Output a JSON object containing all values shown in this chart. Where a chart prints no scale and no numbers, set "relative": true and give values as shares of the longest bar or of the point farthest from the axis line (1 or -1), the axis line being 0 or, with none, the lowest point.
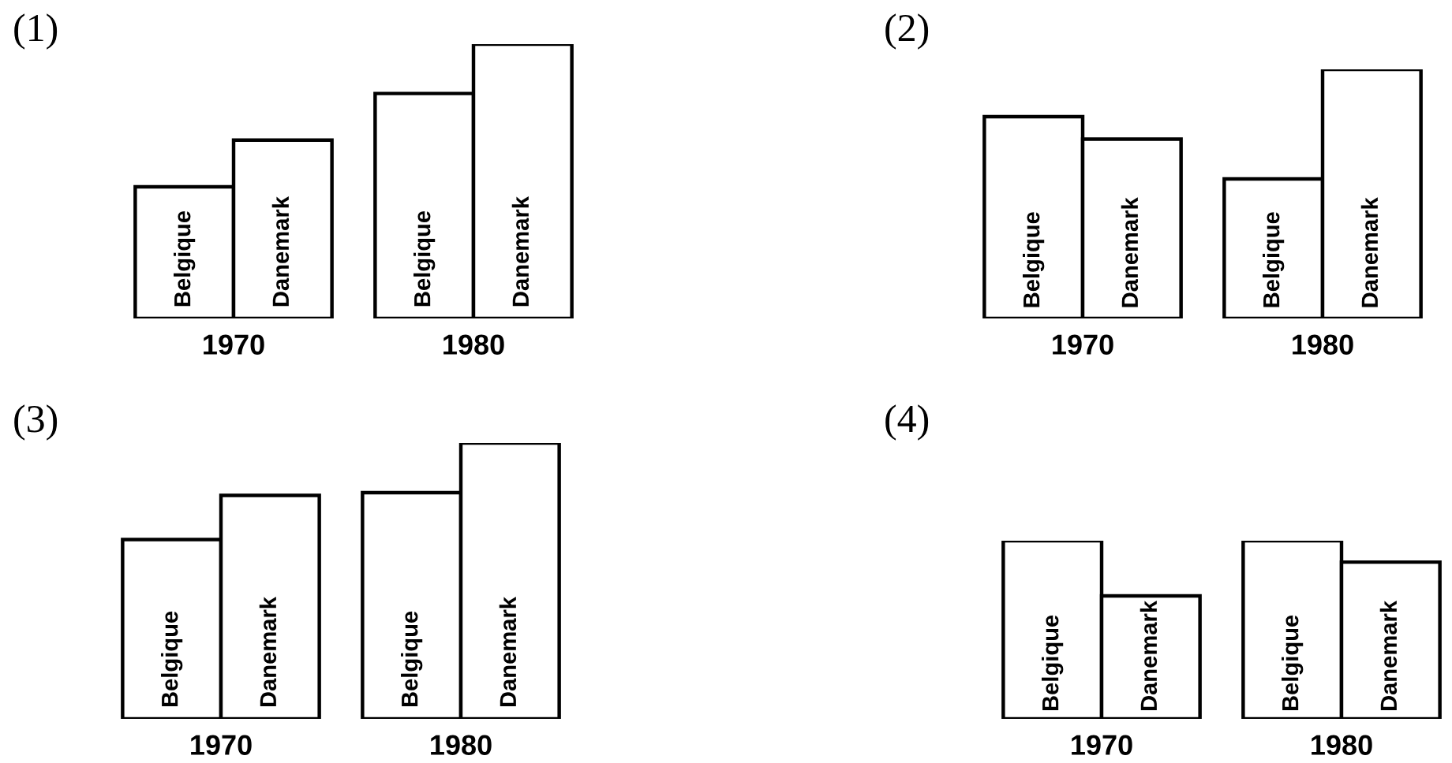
{
  "chart_data": [
    {
      "type": "bar",
      "title": "(1)",
      "relative": true,
      "categories": [
        "1970",
        "1980"
      ],
      "series": [
        {
          "name": "Belgique",
          "color": "#ffffff",
          "values": [
            0.48,
            0.82
          ]
        },
        {
          "name": "Danemark",
          "color": "#ffffff",
          "values": [
            0.65,
            1
          ]
        }
      ]
    },
    {
      "type": "bar",
      "title": "(2)",
      "relative": true,
      "categories": [
        "1970",
        "1980"
      ],
      "series": [
        {
          "name": "Belgique",
          "color": "#ffffff",
          "values": [
            0.81,
            0.56
          ]
        },
        {
          "name": "Danemark",
          "color": "#ffffff",
          "values": [
            0.72,
            1
          ]
        }
      ]
    },
    {
      "type": "bar",
      "title": "(3)",
      "relative": true,
      "categories": [
        "1970",
        "1980"
      ],
      "series": [
        {
          "name": "Belgique",
          "color": "#ffffff",
          "values": [
            0.65,
            0.82
          ]
        },
        {
          "name": "Danemark",
          "color": "#ffffff",
          "values": [
            0.81,
            1
          ]
        }
      ]
    },
    {
      "type": "bar",
      "title": "(4)",
      "relative": true,
      "categories": [
        "1970",
        "1980"
      ],
      "series": [
        {
          "name": "Belgique",
          "color": "#ffffff",
          "values": [
            1,
            1
          ]
        },
        {
          "name": "Danemark",
          "color": "#ffffff",
          "values": [
            0.69,
            0.88
          ]
        }
      ]
    }
  ]
}
